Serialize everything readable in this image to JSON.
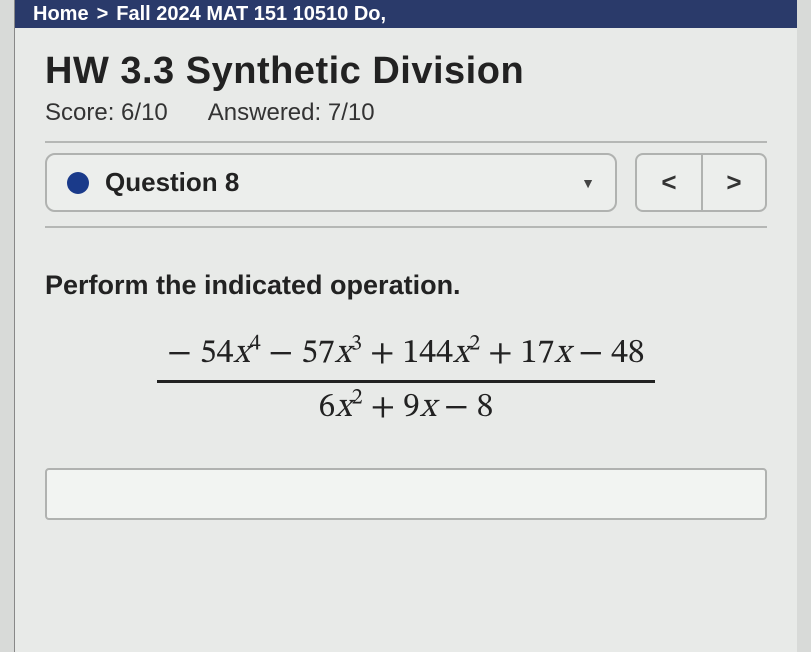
{
  "breadcrumb": {
    "item1": "Home",
    "sep": ">",
    "item2": "Fall 2024 MAT 151 10510 Do,"
  },
  "assignment": {
    "title": "HW 3.3 Synthetic Division",
    "score_label": "Score:",
    "score_value": "6/10",
    "answered_label": "Answered:",
    "answered_value": "7/10"
  },
  "question": {
    "label": "Question 8",
    "dot_color": "#1a3a8a",
    "prompt": "Perform the indicated operation.",
    "expression": {
      "numerator_terms": [
        "− 54",
        "4",
        " − 57",
        "3",
        " + 144",
        "2",
        " + 17",
        " − 48"
      ],
      "denominator_terms": [
        "6",
        "2",
        " + 9",
        " − 8"
      ]
    },
    "answer_value": ""
  },
  "nav": {
    "prev": "<",
    "next": ">"
  },
  "colors": {
    "topbar_bg": "#2a3a6a",
    "page_bg": "#e8eae8",
    "border": "#b0b2b0"
  }
}
